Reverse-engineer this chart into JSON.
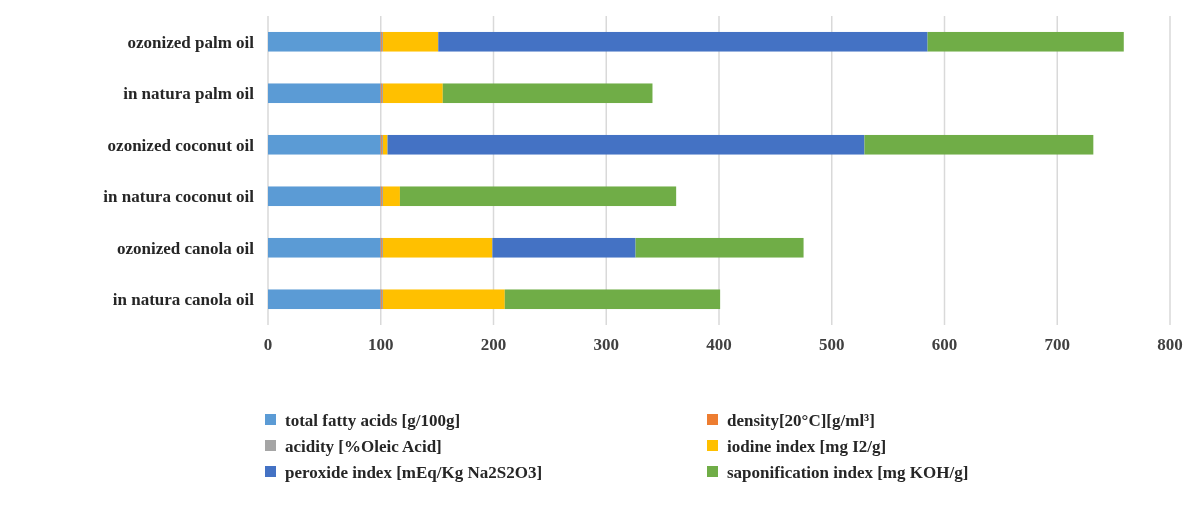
{
  "chart_data": {
    "type": "bar",
    "orientation": "horizontal",
    "stacked": true,
    "categories": [
      "ozonized palm oil",
      "in natura palm oil",
      "ozonized coconut oil",
      "in natura coconut oil",
      "ozonized canola oil",
      "in natura canola oil"
    ],
    "series": [
      {
        "name": "total fatty acids [g/100g]",
        "color": "#5b9bd5",
        "values": [
          100,
          100,
          100,
          100,
          100,
          100
        ]
      },
      {
        "name": "density[20°C][g/ml³]",
        "color": "#ed7d31",
        "values": [
          1,
          1,
          1,
          1,
          1,
          1
        ]
      },
      {
        "name": "acidity [%Oleic Acid]",
        "color": "#a5a5a5",
        "values": [
          1,
          1,
          1,
          1,
          1,
          1
        ]
      },
      {
        "name": "iodine index [mg I2/g]",
        "color": "#ffc000",
        "values": [
          49,
          53,
          4,
          15,
          97,
          108
        ]
      },
      {
        "name": "peroxide index [mEq/Kg Na2S2O3]",
        "color": "#4472c4",
        "values": [
          434,
          0,
          423,
          0,
          127,
          0
        ]
      },
      {
        "name": "saponification index [mg KOH/g]",
        "color": "#70ad47",
        "values": [
          174,
          186,
          203,
          245,
          149,
          191
        ]
      }
    ],
    "xlim": [
      0,
      800
    ],
    "xticks": [
      0,
      100,
      200,
      300,
      400,
      500,
      600,
      700,
      800
    ],
    "grid": "x",
    "legend": "bottom"
  }
}
